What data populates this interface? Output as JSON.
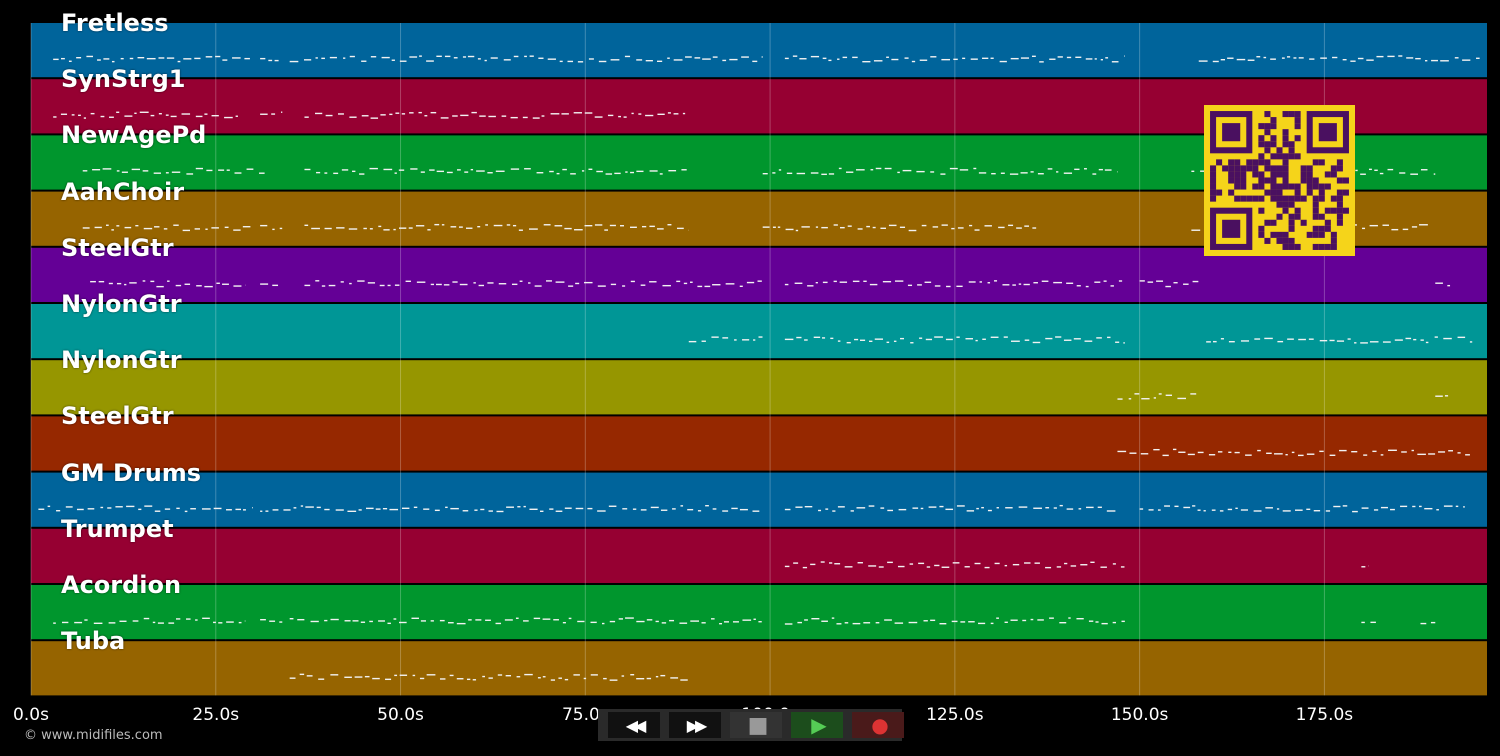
{
  "tracks": [
    {
      "name": "Fretless",
      "color": "#00649b"
    },
    {
      "name": "SynStrg1",
      "color": "#960032"
    },
    {
      "name": "NewAgePd",
      "color": "#00962d"
    },
    {
      "name": "AahChoir",
      "color": "#966400"
    },
    {
      "name": "SteelGtr",
      "color": "#640096"
    },
    {
      "name": "NylonGtr",
      "color": "#009696"
    },
    {
      "name": "NylonGtr",
      "color": "#969600"
    },
    {
      "name": "SteelGtr",
      "color": "#962800"
    },
    {
      "name": "GM Drums",
      "color": "#00649b"
    },
    {
      "name": "Trumpet",
      "color": "#960032"
    },
    {
      "name": "Acordion",
      "color": "#00962d"
    },
    {
      "name": "Tuba",
      "color": "#966400"
    }
  ],
  "axis": {
    "unit": "s",
    "range": [
      0,
      197
    ],
    "ticks": [
      {
        "value": 0,
        "label": "0.0s"
      },
      {
        "value": 25,
        "label": "25.0s"
      },
      {
        "value": 50,
        "label": "50.0s"
      },
      {
        "value": 75,
        "label": "75.0s"
      },
      {
        "value": 100,
        "label": "100.0s"
      },
      {
        "value": 125,
        "label": "125.0s"
      },
      {
        "value": 150,
        "label": "150.0s"
      },
      {
        "value": 175,
        "label": "175.0s"
      }
    ]
  },
  "note_segments": [
    {
      "track": 0,
      "spans": [
        [
          3,
          30
        ],
        [
          31,
          34
        ],
        [
          35,
          99
        ],
        [
          102,
          148
        ],
        [
          158,
          196
        ]
      ]
    },
    {
      "track": 1,
      "spans": [
        [
          3,
          28
        ],
        [
          31,
          34
        ],
        [
          37,
          89
        ]
      ]
    },
    {
      "track": 2,
      "spans": [
        [
          7,
          32
        ],
        [
          37,
          89
        ],
        [
          99,
          147
        ],
        [
          157,
          190
        ]
      ]
    },
    {
      "track": 3,
      "spans": [
        [
          7,
          30
        ],
        [
          31,
          34
        ],
        [
          37,
          89
        ],
        [
          99,
          136
        ],
        [
          157,
          189
        ]
      ]
    },
    {
      "track": 4,
      "spans": [
        [
          8,
          29
        ],
        [
          31,
          34
        ],
        [
          37,
          99
        ],
        [
          102,
          148
        ],
        [
          150,
          158
        ],
        [
          190,
          192
        ]
      ]
    },
    {
      "track": 5,
      "spans": [
        [
          89,
          99
        ],
        [
          102,
          148
        ],
        [
          159,
          195
        ]
      ]
    },
    {
      "track": 6,
      "spans": [
        [
          147,
          158
        ],
        [
          190,
          192
        ]
      ]
    },
    {
      "track": 7,
      "spans": [
        [
          147,
          195
        ]
      ]
    },
    {
      "track": 8,
      "spans": [
        [
          1,
          30
        ],
        [
          31,
          99
        ],
        [
          102,
          147
        ],
        [
          150,
          194
        ]
      ]
    },
    {
      "track": 9,
      "spans": [
        [
          102,
          148
        ],
        [
          180,
          181
        ]
      ]
    },
    {
      "track": 10,
      "spans": [
        [
          3,
          29
        ],
        [
          31,
          34
        ],
        [
          35,
          99
        ],
        [
          102,
          148
        ],
        [
          180,
          182
        ],
        [
          188,
          190
        ]
      ]
    },
    {
      "track": 11,
      "spans": [
        [
          35,
          89
        ]
      ]
    }
  ],
  "controls": {
    "rewind": "◀◀",
    "forward": "▶▶",
    "stop": "■",
    "play": "▶",
    "record": "●"
  },
  "copyright": "© www.midifiles.com",
  "qr_icon": "qr-code-icon"
}
